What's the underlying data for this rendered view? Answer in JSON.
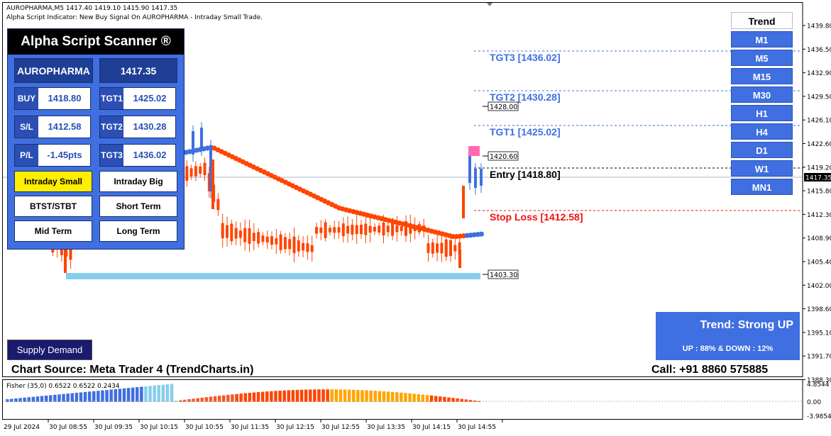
{
  "header": {
    "symbol_line": "AUROPHARMA,M5  1417.40 1419.10 1415.90 1417.35",
    "signal_line": "Alpha Script Indicator: New Buy Signal On AUROPHARMA - Intraday Small Trade."
  },
  "scanner": {
    "title": "Alpha Script Scanner ®",
    "symbol": "AUROPHARMA",
    "price": "1417.35",
    "rows": [
      {
        "label": "BUY",
        "value": "1418.80",
        "tlabel": "TGT1",
        "tvalue": "1425.02"
      },
      {
        "label": "S/L",
        "value": "1412.58",
        "tlabel": "TGT2",
        "tvalue": "1430.28"
      },
      {
        "label": "P/L",
        "value": "-1.45pts",
        "tlabel": "TGT3",
        "tvalue": "1436.02"
      }
    ],
    "buttons": [
      "Intraday Small",
      "Intraday Big",
      "BTST/STBT",
      "Short Term",
      "Mid Term",
      "Long Term"
    ]
  },
  "trend_panel": {
    "header": "Trend",
    "timeframes": [
      "M1",
      "M5",
      "M15",
      "M30",
      "H1",
      "H4",
      "D1",
      "W1",
      "MN1"
    ]
  },
  "levels": {
    "tgt3": "TGT3 [1436.02]",
    "tgt2": "TGT2 [1430.28]",
    "tgt1": "TGT1 [1425.02]",
    "entry": "Entry [1418.80]",
    "stop": "Stop Loss [1412.58]",
    "box_1428": "1428.00",
    "box_1420": "1420.60",
    "box_1403": "1403.30",
    "price_marker": "1417.35"
  },
  "strong_trend": {
    "title": "Trend: Strong UP",
    "detail": "UP : 88% & DOWN : 12%"
  },
  "supply_demand": "Supply Demand",
  "chart_source": "Chart Source: Meta Trader 4 (TrendCharts.in)",
  "call": "Call: +91 8860 575885",
  "fisher_label": "Fisher (35,0) 0.6522 0.6522 0.2434",
  "price_axis": [
    "1439.80",
    "1436.50",
    "1432.90",
    "1429.50",
    "1426.10",
    "1422.60",
    "1419.20",
    "1415.80",
    "1412.30",
    "1408.90",
    "1405.40",
    "1402.00",
    "1398.60",
    "1395.10",
    "1391.70",
    "1388.30"
  ],
  "fisher_axis": [
    "4.8544",
    "0.00",
    "-3.9854"
  ],
  "time_axis": [
    "29 Jul 2024",
    "30 Jul 08:55",
    "30 Jul 09:35",
    "30 Jul 10:15",
    "30 Jul 10:55",
    "30 Jul 11:35",
    "30 Jul 12:15",
    "30 Jul 12:55",
    "30 Jul 13:35",
    "30 Jul 14:15",
    "30 Jul 14:55"
  ],
  "colors": {
    "bear": "#ff4500",
    "bull": "#3f6fe0",
    "support": "#87ceeb",
    "pink": "#ff69b4",
    "panel": "#3f6fe0"
  }
}
